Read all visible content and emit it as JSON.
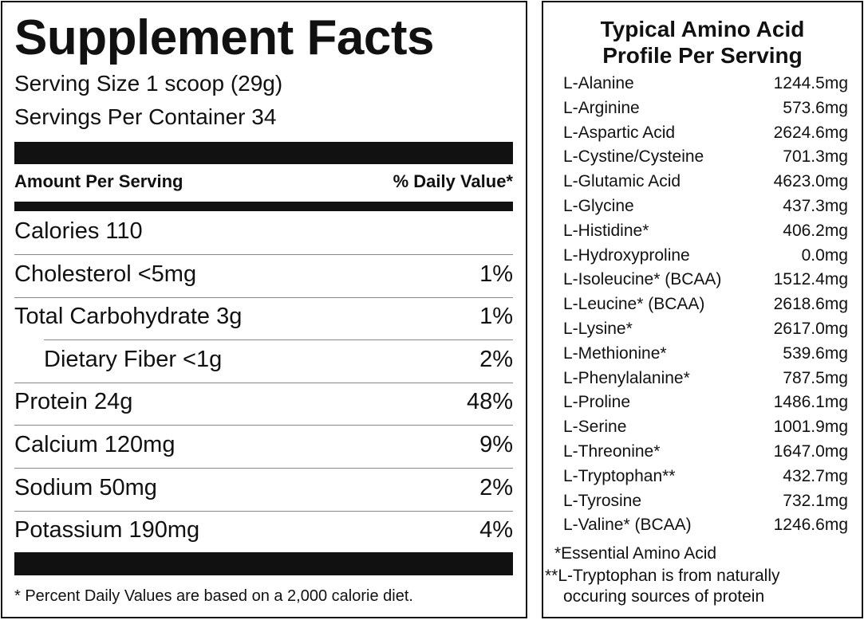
{
  "facts": {
    "title": "Supplement Facts",
    "serving_size": "Serving Size 1 scoop (29g)",
    "servings_per_container": "Servings Per Container 34",
    "amount_header": "Amount Per Serving",
    "dv_header": "% Daily Value*",
    "rows": [
      {
        "label": "Calories 110"
      },
      {
        "label": "Cholesterol <5mg",
        "dv": "1%"
      },
      {
        "label": "Total Carbohydrate 3g",
        "dv": "1%"
      },
      {
        "label": "Dietary Fiber <1g",
        "dv": "2%",
        "indent": true
      },
      {
        "label": "Protein 24g",
        "dv": "48%"
      },
      {
        "label": "Calcium 120mg",
        "dv": "9%"
      },
      {
        "label": "Sodium 50mg",
        "dv": "2%"
      },
      {
        "label": "Potassium 190mg",
        "dv": "4%"
      }
    ],
    "footnote": "* Percent Daily Values are based on a 2,000 calorie diet."
  },
  "amino": {
    "title": [
      "Typical Amino Acid",
      "Profile Per Serving"
    ],
    "rows": [
      {
        "name": "L-Alanine",
        "amount": "1244.5mg"
      },
      {
        "name": "L-Arginine",
        "amount": "573.6mg"
      },
      {
        "name": "L-Aspartic Acid",
        "amount": "2624.6mg"
      },
      {
        "name": "L-Cystine/Cysteine",
        "amount": "701.3mg"
      },
      {
        "name": "L-Glutamic Acid",
        "amount": "4623.0mg"
      },
      {
        "name": "L-Glycine",
        "amount": "437.3mg"
      },
      {
        "name": "L-Histidine*",
        "amount": "406.2mg"
      },
      {
        "name": "L-Hydroxyproline",
        "amount": "0.0mg"
      },
      {
        "name": "L-Isoleucine* (BCAA)",
        "amount": "1512.4mg"
      },
      {
        "name": "L-Leucine* (BCAA)",
        "amount": "2618.6mg"
      },
      {
        "name": "L-Lysine*",
        "amount": "2617.0mg"
      },
      {
        "name": "L-Methionine*",
        "amount": "539.6mg"
      },
      {
        "name": "L-Phenylalanine*",
        "amount": "787.5mg"
      },
      {
        "name": "L-Proline",
        "amount": "1486.1mg"
      },
      {
        "name": "L-Serine",
        "amount": "1001.9mg"
      },
      {
        "name": "L-Threonine*",
        "amount": "1647.0mg"
      },
      {
        "name": "L-Tryptophan**",
        "amount": "432.7mg"
      },
      {
        "name": "L-Tyrosine",
        "amount": "732.1mg"
      },
      {
        "name": "L-Valine* (BCAA)",
        "amount": "1246.6mg"
      }
    ],
    "notes": [
      "*Essential Amino Acid",
      "**L-Tryptophan is from naturally",
      "occuring sources of protein"
    ]
  }
}
